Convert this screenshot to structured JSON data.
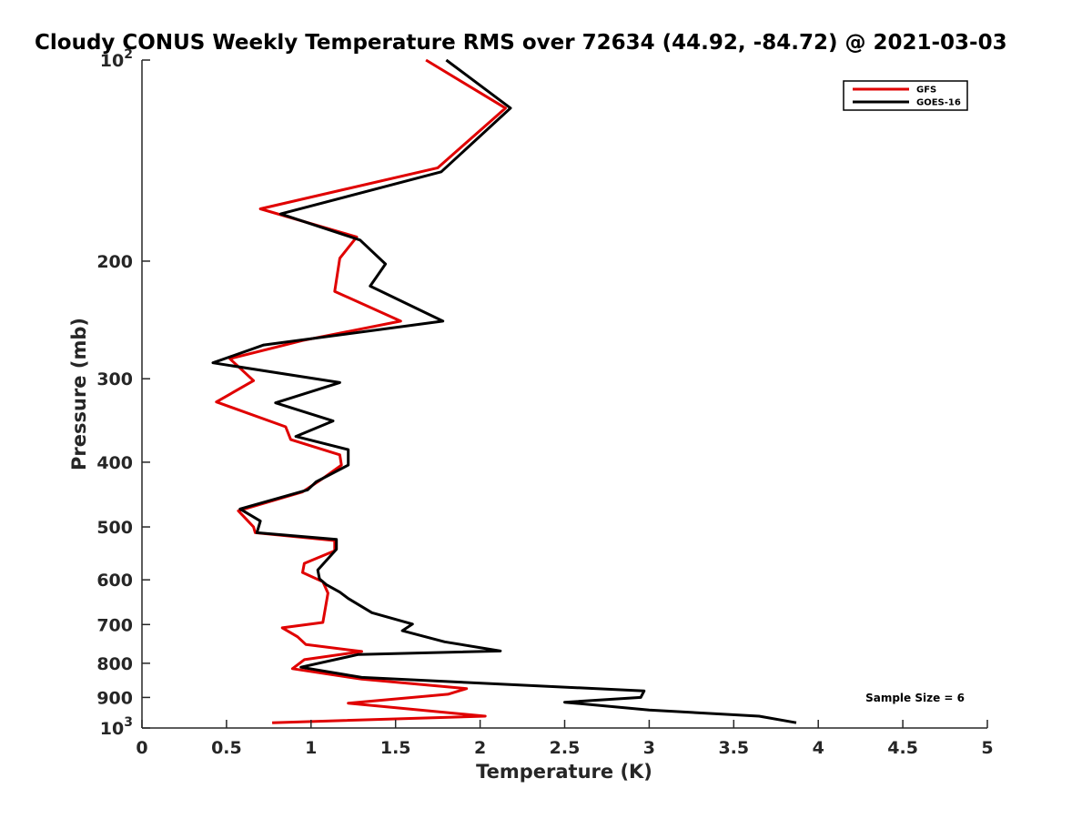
{
  "chart_data": {
    "type": "line",
    "title": "Cloudy CONUS Weekly Temperature RMS over 72634 (44.92, -84.72) @ 2021-03-03",
    "xlabel": "Temperature (K)",
    "ylabel": "Pressure (mb)",
    "xlim": [
      0,
      5
    ],
    "ylim": [
      100,
      1000
    ],
    "yscale": "log",
    "y_reversed": true,
    "x_ticks": [
      "0",
      "0.5",
      "1",
      "1.5",
      "2",
      "2.5",
      "3",
      "3.5",
      "4",
      "4.5",
      "5"
    ],
    "x_tick_values": [
      0,
      0.5,
      1,
      1.5,
      2,
      2.5,
      3,
      3.5,
      4,
      4.5,
      5
    ],
    "y_ticks": [
      {
        "value": 100,
        "base": "10",
        "exp": "2",
        "label": ""
      },
      {
        "value": 200,
        "label": "200"
      },
      {
        "value": 300,
        "label": "300"
      },
      {
        "value": 400,
        "label": "400"
      },
      {
        "value": 500,
        "label": "500"
      },
      {
        "value": 600,
        "label": "600"
      },
      {
        "value": 700,
        "label": "700"
      },
      {
        "value": 800,
        "label": "800"
      },
      {
        "value": 900,
        "label": "900"
      },
      {
        "value": 1000,
        "base": "10",
        "exp": "3",
        "label": ""
      }
    ],
    "grid": false,
    "legend_position": "top-right",
    "annotation": "Sample Size = 6",
    "series": [
      {
        "name": "GFS",
        "color": "#e00000",
        "points": [
          [
            1.68,
            100
          ],
          [
            2.15,
            118
          ],
          [
            1.75,
            145
          ],
          [
            0.7,
            167
          ],
          [
            1.27,
            184
          ],
          [
            1.17,
            198
          ],
          [
            1.14,
            222
          ],
          [
            1.53,
            246
          ],
          [
            0.95,
            263
          ],
          [
            0.52,
            280
          ],
          [
            0.66,
            302
          ],
          [
            0.44,
            325
          ],
          [
            0.85,
            354
          ],
          [
            0.88,
            370
          ],
          [
            1.17,
            390
          ],
          [
            1.18,
            404
          ],
          [
            1.07,
            423
          ],
          [
            0.95,
            443
          ],
          [
            0.57,
            473
          ],
          [
            0.66,
            500
          ],
          [
            0.67,
            510
          ],
          [
            1.14,
            524
          ],
          [
            1.14,
            543
          ],
          [
            0.96,
            567
          ],
          [
            0.95,
            585
          ],
          [
            1.07,
            604
          ],
          [
            1.1,
            628
          ],
          [
            1.07,
            695
          ],
          [
            0.83,
            708
          ],
          [
            0.92,
            730
          ],
          [
            0.97,
            750
          ],
          [
            1.3,
            768
          ],
          [
            0.96,
            790
          ],
          [
            0.89,
            815
          ],
          [
            1.3,
            845
          ],
          [
            1.92,
            873
          ],
          [
            1.81,
            890
          ],
          [
            1.22,
            918
          ],
          [
            2.03,
            960
          ],
          [
            0.77,
            982
          ]
        ]
      },
      {
        "name": "GOES-16",
        "color": "#000000",
        "points": [
          [
            1.8,
            100
          ],
          [
            2.18,
            118
          ],
          [
            1.77,
            147
          ],
          [
            0.82,
            170
          ],
          [
            1.29,
            186
          ],
          [
            1.44,
            202
          ],
          [
            1.35,
            218
          ],
          [
            1.78,
            246
          ],
          [
            0.72,
            267
          ],
          [
            0.42,
            284
          ],
          [
            1.17,
            304
          ],
          [
            0.79,
            326
          ],
          [
            1.13,
            347
          ],
          [
            0.91,
            366
          ],
          [
            1.22,
            383
          ],
          [
            1.22,
            404
          ],
          [
            1.03,
            428
          ],
          [
            0.98,
            440
          ],
          [
            0.58,
            470
          ],
          [
            0.7,
            490
          ],
          [
            0.68,
            510
          ],
          [
            1.15,
            522
          ],
          [
            1.15,
            540
          ],
          [
            1.04,
            580
          ],
          [
            1.05,
            598
          ],
          [
            1.09,
            610
          ],
          [
            1.17,
            626
          ],
          [
            1.22,
            640
          ],
          [
            1.36,
            672
          ],
          [
            1.6,
            699
          ],
          [
            1.54,
            715
          ],
          [
            1.79,
            743
          ],
          [
            2.12,
            767
          ],
          [
            1.28,
            776
          ],
          [
            0.94,
            811
          ],
          [
            1.3,
            840
          ],
          [
            2.97,
            880
          ],
          [
            2.95,
            900
          ],
          [
            2.5,
            915
          ],
          [
            3.0,
            940
          ],
          [
            3.65,
            960
          ],
          [
            3.87,
            982
          ]
        ]
      }
    ]
  }
}
